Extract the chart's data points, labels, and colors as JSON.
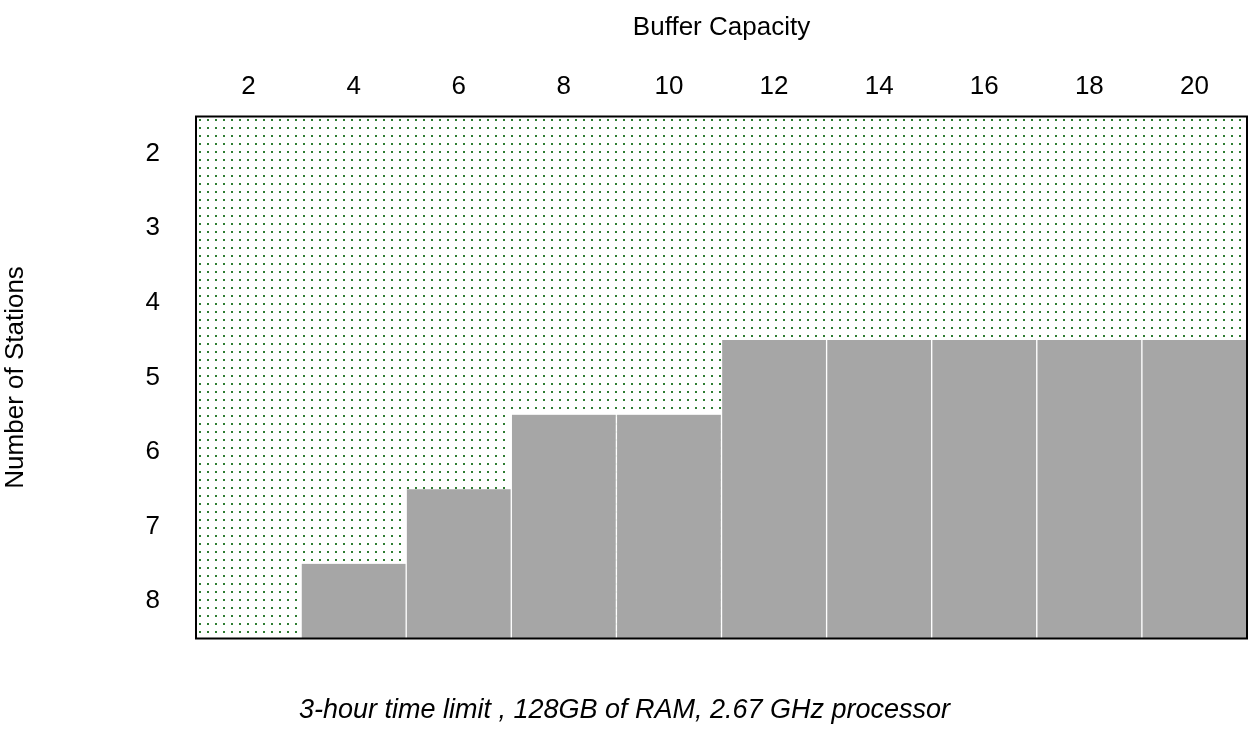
{
  "chart_data": {
    "type": "bar",
    "xlabel": "Buffer Capacity",
    "ylabel": "Number of Stations",
    "categories": [
      "2",
      "4",
      "6",
      "8",
      "10",
      "12",
      "14",
      "16",
      "18",
      "20"
    ],
    "base": [
      null,
      8.5,
      8.5,
      8.5,
      8.5,
      8.5,
      8.5,
      8.5,
      8.5,
      8.5
    ],
    "values": [
      null,
      -1,
      -2,
      -3,
      -3,
      -4,
      -4,
      -4,
      -4,
      -4
    ],
    "color": "#a6a6a6",
    "ylim": [
      8.5,
      1.5
    ],
    "yticks": [
      2,
      3,
      4,
      5,
      6,
      7,
      8
    ],
    "grid": false,
    "annotations": [
      "3-hour time limit , 128GB of RAM, 2.67 GHz processor"
    ]
  }
}
